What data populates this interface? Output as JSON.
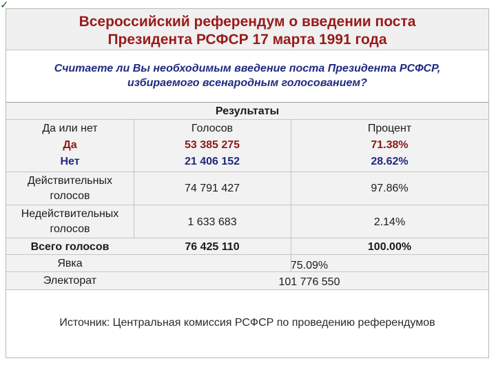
{
  "check_icon": "✓",
  "title": {
    "line1": "Всероссийский референдум о введении поста",
    "line2": "Президента РСФСР 17 марта 1991 года"
  },
  "question": {
    "line1": "Считаете ли Вы необходимым введение поста Президента РСФСР,",
    "line2": "избираемого всенародным голосованием?"
  },
  "results": {
    "header": "Результаты",
    "col_answer": "Да или нет",
    "col_votes": "Голосов",
    "col_percent": "Процент",
    "rows": [
      {
        "label": "Да",
        "votes": "53 385 275",
        "percent": "71.38%"
      },
      {
        "label": "Нет",
        "votes": "21 406 152",
        "percent": "28.62%"
      },
      {
        "label_line1": "Действительных",
        "label_line2": "голосов",
        "votes": "74 791 427",
        "percent": "97.86%"
      },
      {
        "label_line1": "Недействительных",
        "label_line2": "голосов",
        "votes": "1 633 683",
        "percent": "2.14%"
      },
      {
        "label": "Всего голосов",
        "votes": "76 425 110",
        "percent": "100.00%"
      }
    ],
    "turnout_label": "Явка",
    "turnout_value": "75.09%",
    "electorate_label": "Электорат",
    "electorate_value": "101 776 550"
  },
  "source": "Источник: Центральная комиссия РСФСР по проведению референдумов",
  "colors": {
    "title": "#9a1a1a",
    "question": "#1f2a80",
    "yes_no": "#8a1a1a"
  }
}
